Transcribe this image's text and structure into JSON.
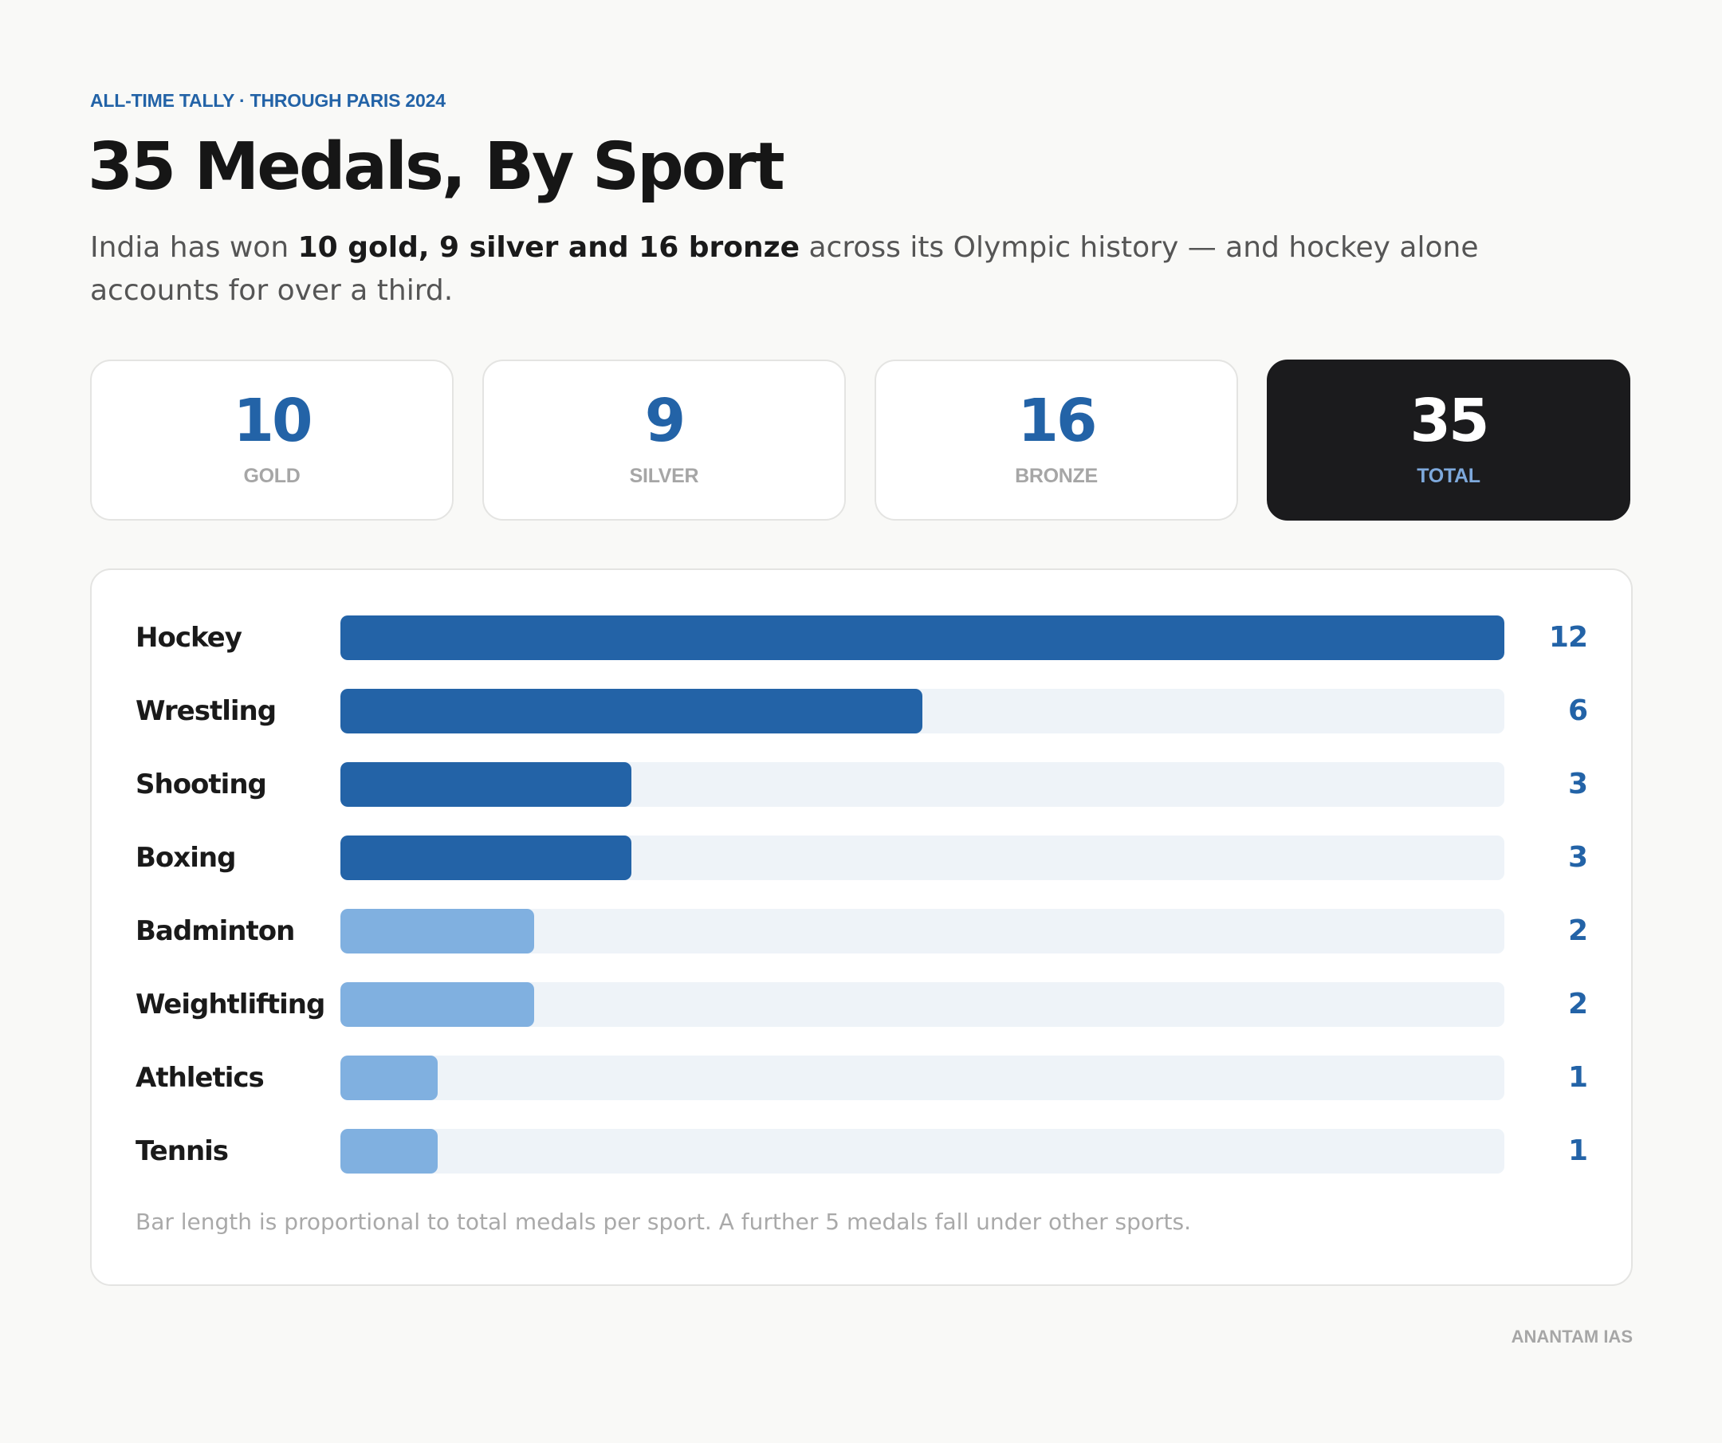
{
  "header": {
    "eyebrow": "ALL-TIME TALLY · THROUGH PARIS 2024",
    "title": "35 Medals, By Sport",
    "subtitle_before": "India has won ",
    "subtitle_bold": "10 gold, 9 silver and 16 bronze",
    "subtitle_after": " across its Olympic history — and hockey alone accounts for over a third."
  },
  "stats": [
    {
      "value": "10",
      "label": "GOLD",
      "dark": false
    },
    {
      "value": "9",
      "label": "SILVER",
      "dark": false
    },
    {
      "value": "16",
      "label": "BRONZE",
      "dark": false
    },
    {
      "value": "35",
      "label": "TOTAL",
      "dark": true
    }
  ],
  "colors": {
    "primary_bar": "#2363a7",
    "secondary_bar": "#80b0e0",
    "track": "#eef3f8",
    "value_text": "#2363a7"
  },
  "chart_data": {
    "type": "bar",
    "orientation": "horizontal",
    "categories": [
      "Hockey",
      "Wrestling",
      "Shooting",
      "Boxing",
      "Badminton",
      "Weightlifting",
      "Athletics",
      "Tennis"
    ],
    "values": [
      12,
      6,
      3,
      3,
      2,
      2,
      1,
      1
    ],
    "xlim": [
      0,
      12
    ],
    "title": "",
    "xlabel": "",
    "ylabel": "",
    "grid": false,
    "legend": "none",
    "note": "Bar length is proportional to total medals per sport. A further 5 medals fall under other sports."
  },
  "footer": {
    "credit": "ANANTAM IAS"
  }
}
